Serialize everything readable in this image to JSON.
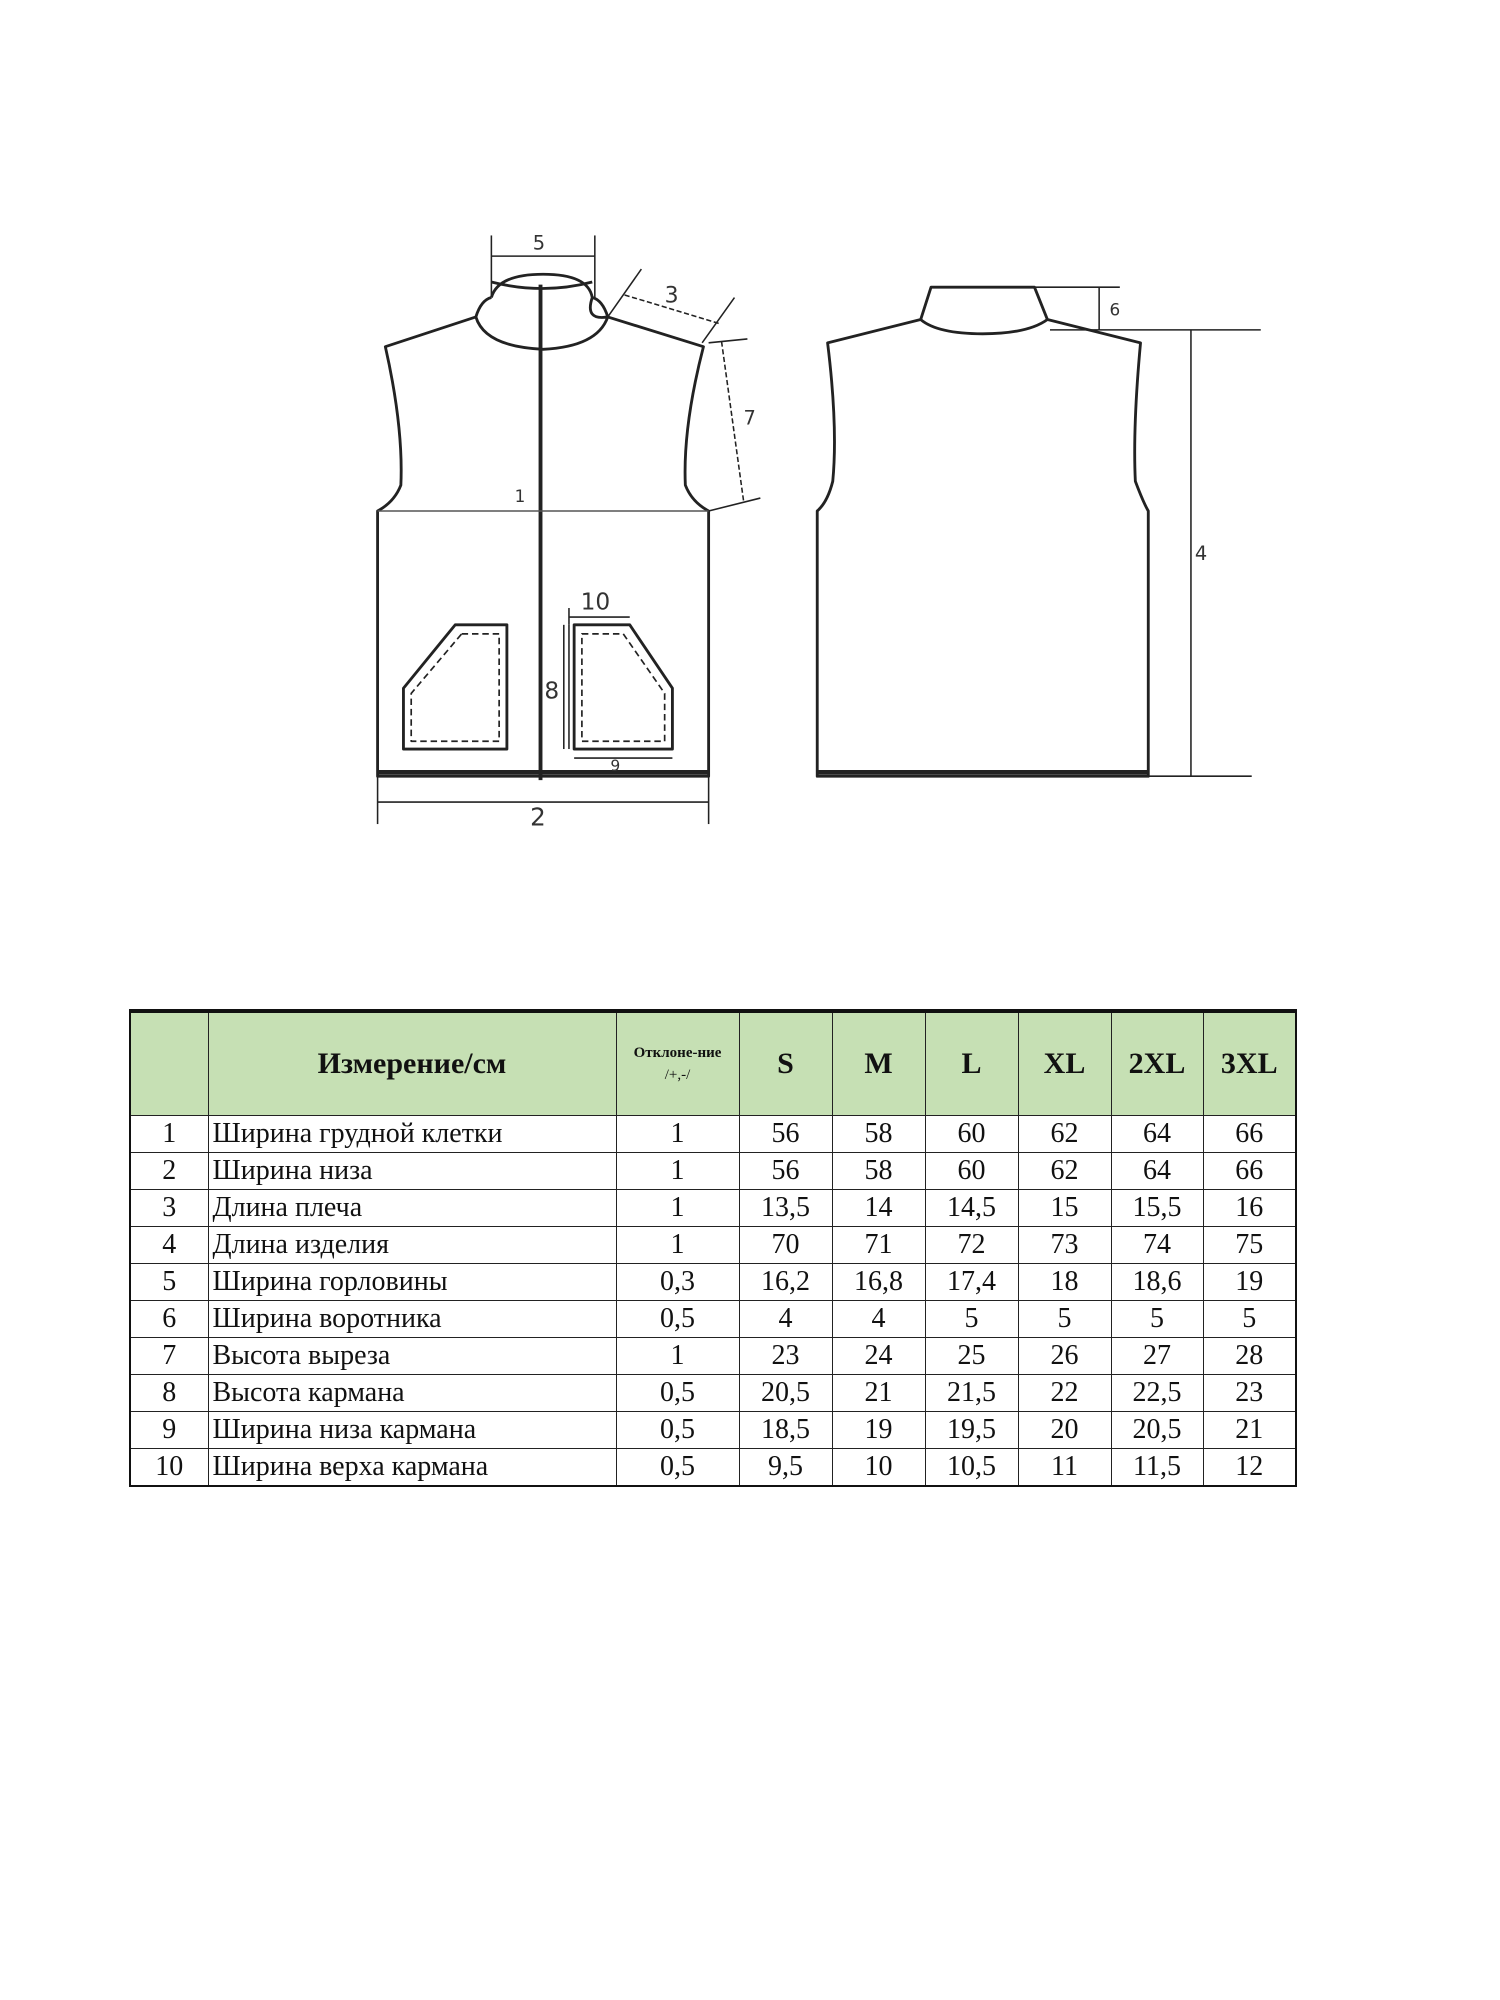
{
  "diagram": {
    "labels": {
      "chest_width": "1",
      "bottom_width": "2",
      "shoulder_length": "3",
      "garment_length": "4",
      "neck_width": "5",
      "collar_width": "6",
      "armhole_height": "7",
      "pocket_height": "8",
      "pocket_bottom_width": "9",
      "pocket_top_width": "10"
    }
  },
  "table": {
    "header": {
      "num": "",
      "measurement": "Измерение/см",
      "deviation_line1": "Отклоне-ние",
      "deviation_line2": "/+,-/",
      "sizes": [
        "S",
        "M",
        "L",
        "XL",
        "2XL",
        "3XL"
      ]
    },
    "header_color": "#c6e0b4",
    "rows": [
      {
        "num": "1",
        "name": "Ширина грудной клетки",
        "dev": "1",
        "values": [
          "56",
          "58",
          "60",
          "62",
          "64",
          "66"
        ]
      },
      {
        "num": "2",
        "name": "Ширина низа",
        "dev": "1",
        "values": [
          "56",
          "58",
          "60",
          "62",
          "64",
          "66"
        ]
      },
      {
        "num": "3",
        "name": "Длина плеча",
        "dev": "1",
        "values": [
          "13,5",
          "14",
          "14,5",
          "15",
          "15,5",
          "16"
        ]
      },
      {
        "num": "4",
        "name": "Длина изделия",
        "dev": "1",
        "values": [
          "70",
          "71",
          "72",
          "73",
          "74",
          "75"
        ]
      },
      {
        "num": "5",
        "name": "Ширина горловины",
        "dev": "0,3",
        "values": [
          "16,2",
          "16,8",
          "17,4",
          "18",
          "18,6",
          "19"
        ]
      },
      {
        "num": "6",
        "name": "Ширина воротника",
        "dev": "0,5",
        "values": [
          "4",
          "4",
          "5",
          "5",
          "5",
          "5"
        ]
      },
      {
        "num": "7",
        "name": "Высота выреза",
        "dev": "1",
        "values": [
          "23",
          "24",
          "25",
          "26",
          "27",
          "28"
        ]
      },
      {
        "num": "8",
        "name": "Высота кармана",
        "dev": "0,5",
        "values": [
          "20,5",
          "21",
          "21,5",
          "22",
          "22,5",
          "23"
        ]
      },
      {
        "num": "9",
        "name": "Ширина низа кармана",
        "dev": "0,5",
        "values": [
          "18,5",
          "19",
          "19,5",
          "20",
          "20,5",
          "21"
        ]
      },
      {
        "num": "10",
        "name": "Ширина верха кармана",
        "dev": "0,5",
        "values": [
          "9,5",
          "10",
          "10,5",
          "11",
          "11,5",
          "12"
        ]
      }
    ]
  }
}
